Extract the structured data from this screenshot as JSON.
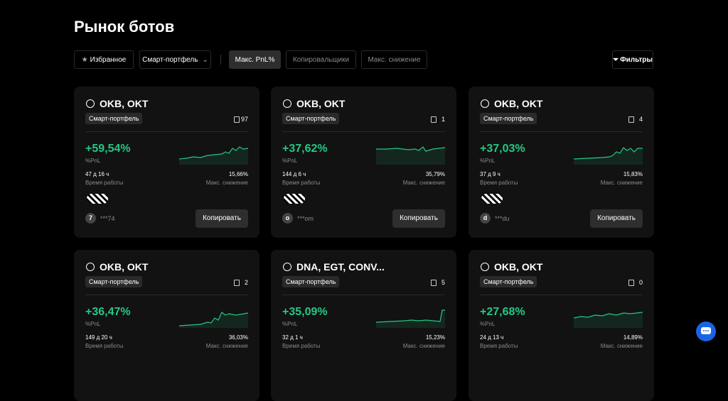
{
  "header": {
    "title": "Рынок ботов"
  },
  "filters": {
    "favorites": "Избранное",
    "portfolio": "Смарт-портфель",
    "sorts": [
      "Макс. PnL%",
      "Копировальщики",
      "Макс. снижение"
    ],
    "filter_button": "Фильтры"
  },
  "cards": [
    {
      "coins": "OKB, OKT",
      "tag": "Смарт-портфель",
      "copies": "97",
      "pnl": "+59,54%",
      "pnl_label": "%PnL",
      "runtime": "47 д 16 ч",
      "runtime_label": "Время работы",
      "drawdown": "15,66%",
      "drawdown_label": "Макс. снижение",
      "avatar": "7",
      "user": "***74",
      "button": "Копировать"
    },
    {
      "coins": "OKB, OKT",
      "tag": "Смарт-портфель",
      "copies": "1",
      "pnl": "+37,62%",
      "pnl_label": "%PnL",
      "runtime": "144 д 6 ч",
      "runtime_label": "Время работы",
      "drawdown": "35,79%",
      "drawdown_label": "Макс. снижение",
      "avatar": "o",
      "user": "***om",
      "button": "Копировать"
    },
    {
      "coins": "OKB, OKT",
      "tag": "Смарт-портфель",
      "copies": "4",
      "pnl": "+37,03%",
      "pnl_label": "%PnL",
      "runtime": "37 д 9 ч",
      "runtime_label": "Время работы",
      "drawdown": "15,83%",
      "drawdown_label": "Макс. снижение",
      "avatar": "d",
      "user": "***du",
      "button": "Копировать"
    },
    {
      "coins": "OKB, OKT",
      "tag": "Смарт-портфель",
      "copies": "2",
      "pnl": "+36,47%",
      "pnl_label": "%PnL",
      "runtime": "149 д 20 ч",
      "runtime_label": "Время работы",
      "drawdown": "36,03%",
      "drawdown_label": "Макс. снижение"
    },
    {
      "coins": "DNA, EGT, CONV...",
      "tag": "Смарт-портфель",
      "copies": "5",
      "pnl": "+35,09%",
      "pnl_label": "%PnL",
      "runtime": "32 д 1 ч",
      "runtime_label": "Время работы",
      "drawdown": "15,23%",
      "drawdown_label": "Макс. снижение"
    },
    {
      "coins": "OKB, OKT",
      "tag": "Смарт-портфель",
      "copies": "0",
      "pnl": "+27,68%",
      "pnl_label": "%PnL",
      "runtime": "24 д 13 ч",
      "runtime_label": "Время работы",
      "drawdown": "14,89%",
      "drawdown_label": "Макс. снижение"
    }
  ]
}
